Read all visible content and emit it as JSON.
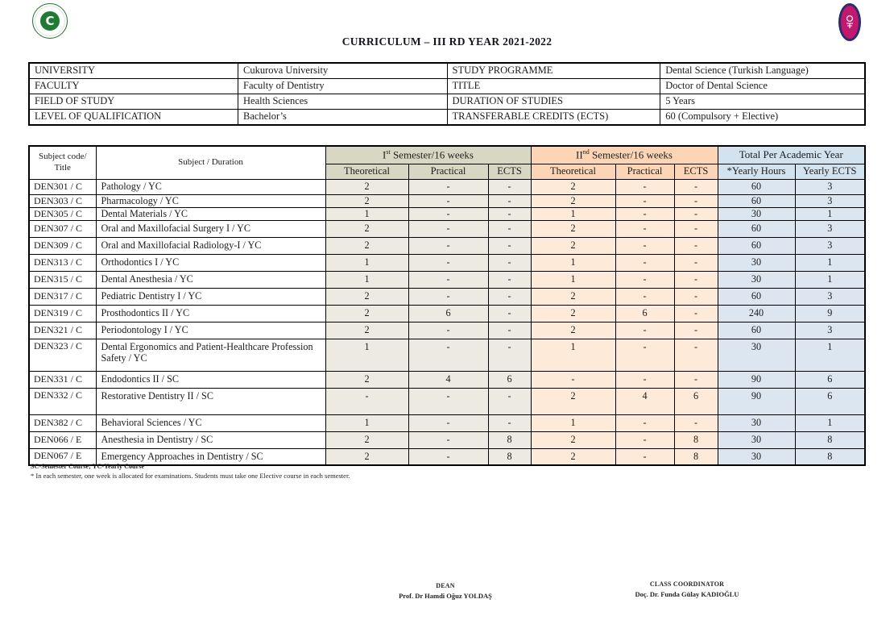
{
  "doc": {
    "title": "CURRICULUM – III RD YEAR 2021-2022"
  },
  "logos": {
    "left_name": "cukurova-university-logo",
    "left_glyph": "C",
    "right_name": "faculty-of-dentistry-logo"
  },
  "colors": {
    "sem1_header_bg": "#d7d7c3",
    "sem1_cell_bg": "#eceae1",
    "sem2_header_bg": "#fbd5b5",
    "sem2_cell_bg": "#fdead9",
    "total_header_bg": "#d3e2ef",
    "total_cell_bg": "#dbe6f1",
    "logo_green": "#1f7a34",
    "logo_magenta": "#c2186d",
    "logo_navy": "#2d2c6e"
  },
  "info_table": {
    "rows": [
      [
        "UNIVERSITY",
        "Cukurova University",
        "STUDY PROGRAMME",
        "Dental Science (Turkish Language)"
      ],
      [
        "FACULTY",
        "Faculty of Dentistry",
        "TITLE",
        "Doctor of Dental Science"
      ],
      [
        "FIELD OF STUDY",
        "Health Sciences",
        "DURATION OF STUDIES",
        "5 Years"
      ],
      [
        "LEVEL OF QUALIFICATION",
        "Bachelor’s",
        "TRANSFERABLE CREDITS (ECTS)",
        "60 (Compulsory + Elective)"
      ]
    ]
  },
  "curriculum_table": {
    "col_headers": {
      "code": "Subject code/ Title",
      "subject": "Subject / Duration"
    },
    "sem1_header": {
      "roman": "I",
      "ordinal": "st",
      "rest": " Semester/16 weeks"
    },
    "sem2_header": {
      "roman": "II",
      "ordinal": "nd",
      "rest": " Semester/16 weeks"
    },
    "total_header": "Total Per Academic Year",
    "sub_headers": [
      "Theoretical",
      "Practical",
      "ECTS",
      "Theoretical",
      "Practical",
      "ECTS",
      "*Yearly Hours",
      "Yearly ECTS"
    ],
    "rows": [
      [
        "DEN301 / C",
        "Pathology / YC",
        "2",
        "-",
        "-",
        "2",
        "-",
        "-",
        "60",
        "3"
      ],
      [
        "DEN303 / C",
        "Pharmacology / YC",
        "2",
        "-",
        "-",
        "2",
        "-",
        "-",
        "60",
        "3"
      ],
      [
        "DEN305 / C",
        "Dental Materials  / YC",
        "1",
        "-",
        "-",
        "1",
        "-",
        "-",
        "30",
        "1"
      ],
      [
        "DEN307 / C",
        "Oral and Maxillofacial Surgery I  / YC",
        "2",
        "-",
        "-",
        "2",
        "-",
        "-",
        "60",
        "3"
      ],
      [
        "DEN309 / C",
        "Oral and Maxillofacial Radiology-I  / YC",
        "2",
        "-",
        "-",
        "2",
        "-",
        "-",
        "60",
        "3"
      ],
      [
        "DEN313 / C",
        "Orthodontics I  / YC",
        "1",
        "-",
        "-",
        "1",
        "-",
        "-",
        "30",
        "1"
      ],
      [
        "DEN315 / C",
        "Dental Anesthesia  / YC",
        "1",
        "-",
        "-",
        "1",
        "-",
        "-",
        "30",
        "1"
      ],
      [
        "DEN317 / C",
        "Pediatric Dentistry I  / YC",
        "2",
        "-",
        "-",
        "2",
        "-",
        "-",
        "60",
        "3"
      ],
      [
        "DEN319 / C",
        "Prosthodontics II / YC",
        "2",
        "6",
        "-",
        "2",
        "6",
        "-",
        "240",
        "9"
      ],
      [
        "DEN321 / C",
        "Periodontology I  / YC",
        "2",
        "-",
        "-",
        "2",
        "-",
        "-",
        "60",
        "3"
      ],
      [
        "DEN323 / C",
        "Dental Ergonomics and Patient-Healthcare Profession Safety  / YC",
        "1",
        "-",
        "-",
        "1",
        "-",
        "-",
        "30",
        "1"
      ],
      [
        "DEN331 / C",
        "Endodontics II  / SC",
        "2",
        "4",
        "6",
        "-",
        "-",
        "-",
        "90",
        "6"
      ],
      [
        "DEN332 / C",
        "Restorative Dentistry II  / SC",
        "-",
        "-",
        "-",
        "2",
        "4",
        "6",
        "90",
        "6"
      ],
      [
        "DEN382 / C",
        "Behavioral Sciences  / YC",
        "1",
        "-",
        "-",
        "1",
        "-",
        "-",
        "30",
        "1"
      ],
      [
        "DEN066 / E",
        "Anesthesia in Dentistry / SC",
        "2",
        "-",
        "8",
        "2",
        "-",
        "8",
        "30",
        "8"
      ],
      [
        "DEN067 / E",
        "Emergency Approaches in Dentistry / SC",
        "2",
        "-",
        "8",
        "2",
        "-",
        "8",
        "30",
        "8"
      ]
    ]
  },
  "footnotes": [
    "SC-Semester Course; YC-Yearly Course",
    "* In each semester, one week is allocated for examinations. Students must take one Elective course in each semester."
  ],
  "signatures": {
    "dean": {
      "title": "DEAN",
      "name": "Prof. Dr Hamdi Oğuz YOLDAŞ"
    },
    "coordinator": {
      "title": "CLASS COORDINATOR",
      "name": "Doç. Dr. Funda Gülay KADIOĞLU"
    }
  }
}
